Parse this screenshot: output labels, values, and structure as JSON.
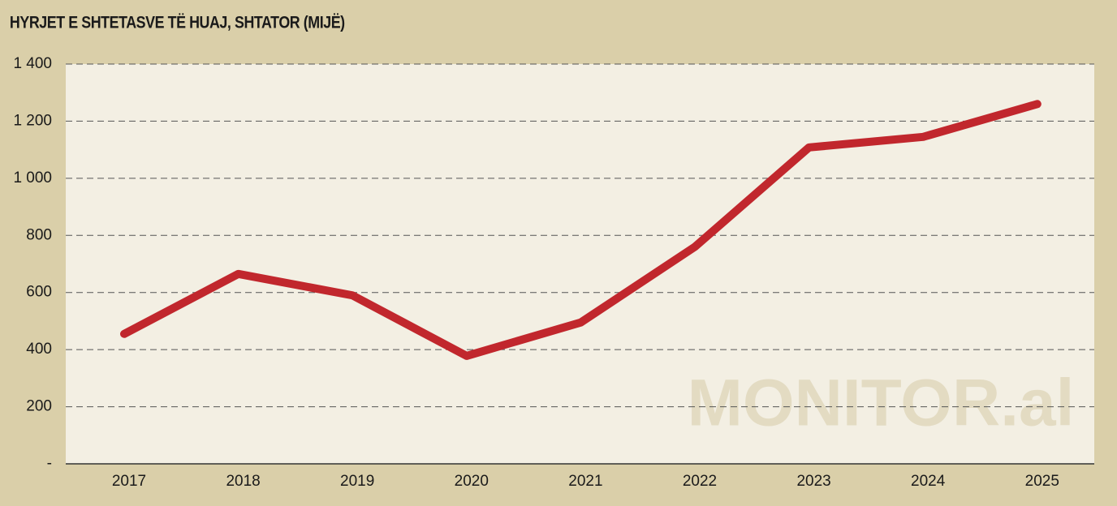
{
  "chart_data": {
    "type": "line",
    "title": "HYRJET E SHTETASVE TË HUAJ, SHTATOR (MIJË)",
    "watermark": "MONITOR.al",
    "categories": [
      "2017",
      "2018",
      "2019",
      "2020",
      "2021",
      "2022",
      "2023",
      "2024",
      "2025"
    ],
    "values": [
      455,
      665,
      590,
      378,
      495,
      760,
      1108,
      1145,
      1260
    ],
    "color": "#c1272d",
    "ylim": [
      0,
      1400
    ],
    "yticks": [
      {
        "value": 0,
        "label": "-"
      },
      200,
      400,
      600,
      800,
      {
        "value": 1000,
        "label": "1 000"
      },
      {
        "value": 1200,
        "label": "1 200"
      },
      {
        "value": 1400,
        "label": "1 400"
      }
    ],
    "grid": true
  }
}
